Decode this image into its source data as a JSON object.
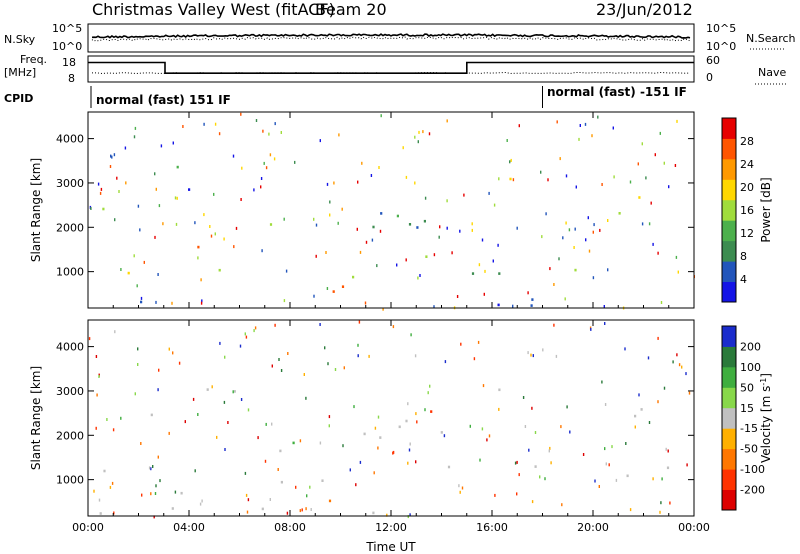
{
  "header": {
    "title": "Christmas Valley West (fitACF)",
    "beam": "Beam 20",
    "date": "23/Jun/2012"
  },
  "chart_data": [
    {
      "type": "line",
      "panel": "noise",
      "left_label": "N.Sky",
      "right_label": "N.Search",
      "left_ticks": [
        "10^5",
        "10^0"
      ],
      "right_ticks": [
        "10^5",
        "10^0"
      ],
      "series": [
        {
          "style": "solid"
        },
        {
          "style": "dotted"
        }
      ]
    },
    {
      "type": "line",
      "panel": "frequency",
      "left_label_lines": [
        "Freq.",
        "[MHz]"
      ],
      "right_label": "Nave",
      "left_ticks": [
        18,
        8
      ],
      "right_ticks": [
        60,
        0
      ],
      "ylim": [
        8,
        18
      ],
      "freq_steps": [
        {
          "x": 0.0,
          "y": 15.5
        },
        {
          "x": 3.05,
          "y": 15.5
        },
        {
          "x": 3.05,
          "y": 11.4
        },
        {
          "x": 15.0,
          "y": 11.4
        },
        {
          "x": 15.0,
          "y": 15.5
        },
        {
          "x": 24.0,
          "y": 15.5
        }
      ]
    },
    {
      "type": "table",
      "panel": "cpid",
      "label": "CPID",
      "segments": [
        {
          "x": 0.0,
          "text": "normal (fast) 151 IF"
        },
        {
          "x": 18.0,
          "text": "normal (fast) -151 IF"
        }
      ]
    },
    {
      "type": "heatmap",
      "panel": "power",
      "ylabel": "Slant Range [km]",
      "yticks": [
        1000,
        2000,
        3000,
        4000
      ],
      "ylim": [
        180,
        4600
      ],
      "xlim": [
        0,
        24
      ],
      "colorbar": {
        "label": "Power [dB]",
        "range": [
          0,
          32
        ],
        "ticks": [
          4,
          8,
          12,
          16,
          20,
          24,
          28
        ],
        "colors": [
          "#1414e6",
          "#2255bb",
          "#3c8c50",
          "#4cb04c",
          "#a0dc3c",
          "#ffd700",
          "#ff9900",
          "#ff5500",
          "#e60000"
        ]
      }
    },
    {
      "type": "heatmap",
      "panel": "velocity",
      "ylabel": "Slant Range [km]",
      "yticks": [
        1000,
        2000,
        3000,
        4000
      ],
      "ylim": [
        180,
        4600
      ],
      "xlim": [
        0,
        24
      ],
      "xlabel": "Time UT",
      "xticks": [
        "00:00",
        "04:00",
        "08:00",
        "12:00",
        "16:00",
        "20:00",
        "00:00"
      ],
      "colorbar": {
        "label": "Velocity [m s^-1]",
        "ticks": [
          "200",
          "100",
          "50",
          "15",
          "-15",
          "-50",
          "-100",
          "-200"
        ],
        "colors": [
          "#1a2ccc",
          "#2a7a3a",
          "#3fae3f",
          "#88d84a",
          "#c0c0c0",
          "#ffb000",
          "#ff7700",
          "#ff3300",
          "#dd0000"
        ]
      }
    }
  ]
}
